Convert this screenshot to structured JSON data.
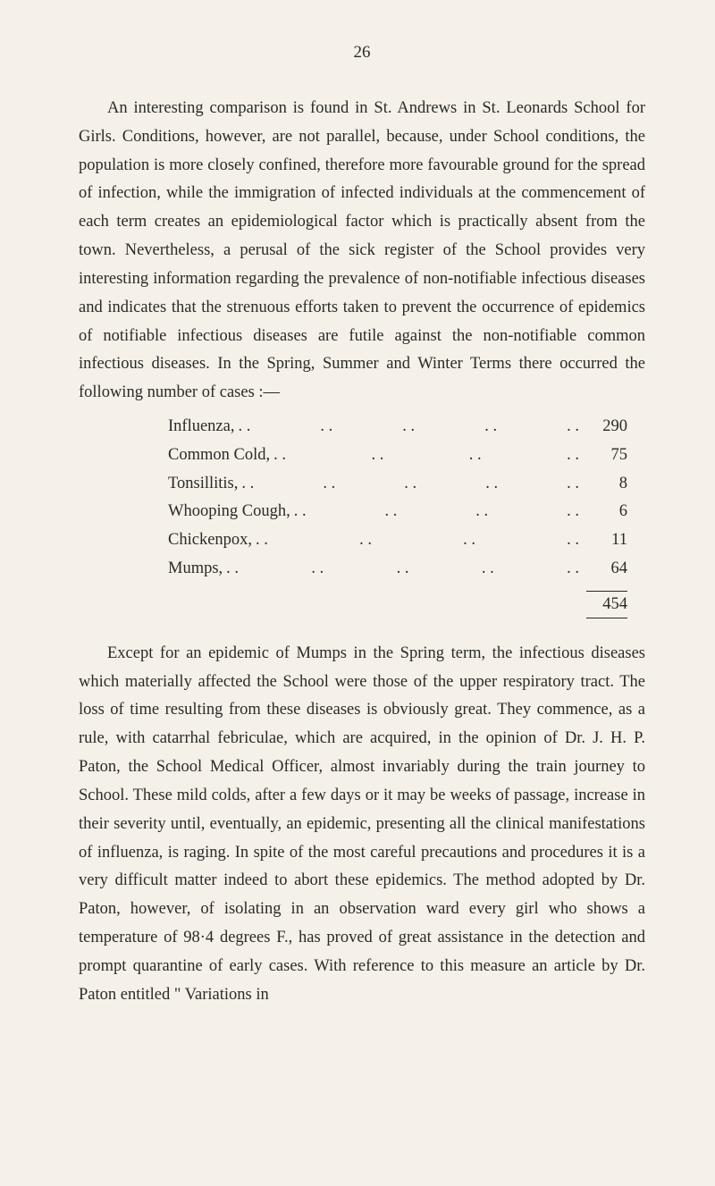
{
  "page_number": "26",
  "paragraph1": "An interesting comparison is found in St. Andrews in St. Leonards School for Girls. Conditions, however, are not parallel, because, under School conditions, the population is more closely confined, therefore more favourable ground for the spread of infection, while the immigration of infected individuals at the commencement of each term creates an epidemiological factor which is practically absent from the town. Nevertheless, a perusal of the sick register of the School provides very interesting information regarding the prevalence of non-notifiable infectious diseases and indicates that the strenuous efforts taken to prevent the occurrence of epidemics of notifiable infectious diseases are futile against the non-notifiable common infectious diseases. In the Spring, Summer and Winter Terms there occurred the following number of cases :—",
  "diseases": [
    {
      "name": "Influenza,",
      "count": "290"
    },
    {
      "name": "Common Cold,",
      "count": "75"
    },
    {
      "name": "Tonsillitis,",
      "count": "8"
    },
    {
      "name": "Whooping Cough,",
      "count": "6"
    },
    {
      "name": "Chickenpox,",
      "count": "11"
    },
    {
      "name": "Mumps,",
      "count": "64"
    }
  ],
  "total": "454",
  "paragraph2": "Except for an epidemic of Mumps in the Spring term, the infectious diseases which materially affected the School were those of the upper respiratory tract. The loss of time resulting from these diseases is obviously great. They commence, as a rule, with catarrhal febriculae, which are acquired, in the opinion of Dr. J. H. P. Paton, the School Medical Officer, almost invariably during the train journey to School. These mild colds, after a few days or it may be weeks of passage, increase in their severity until, eventually, an epidemic, presenting all the clinical manifestations of influenza, is raging. In spite of the most careful precautions and procedures it is a very difficult matter indeed to abort these epidemics. The method adopted by Dr. Paton, however, of isolating in an observation ward every girl who shows a temperature of 98·4 degrees F., has proved of great assistance in the detection and prompt quarantine of early cases. With reference to this measure an article by Dr. Paton entitled \" Variations in"
}
